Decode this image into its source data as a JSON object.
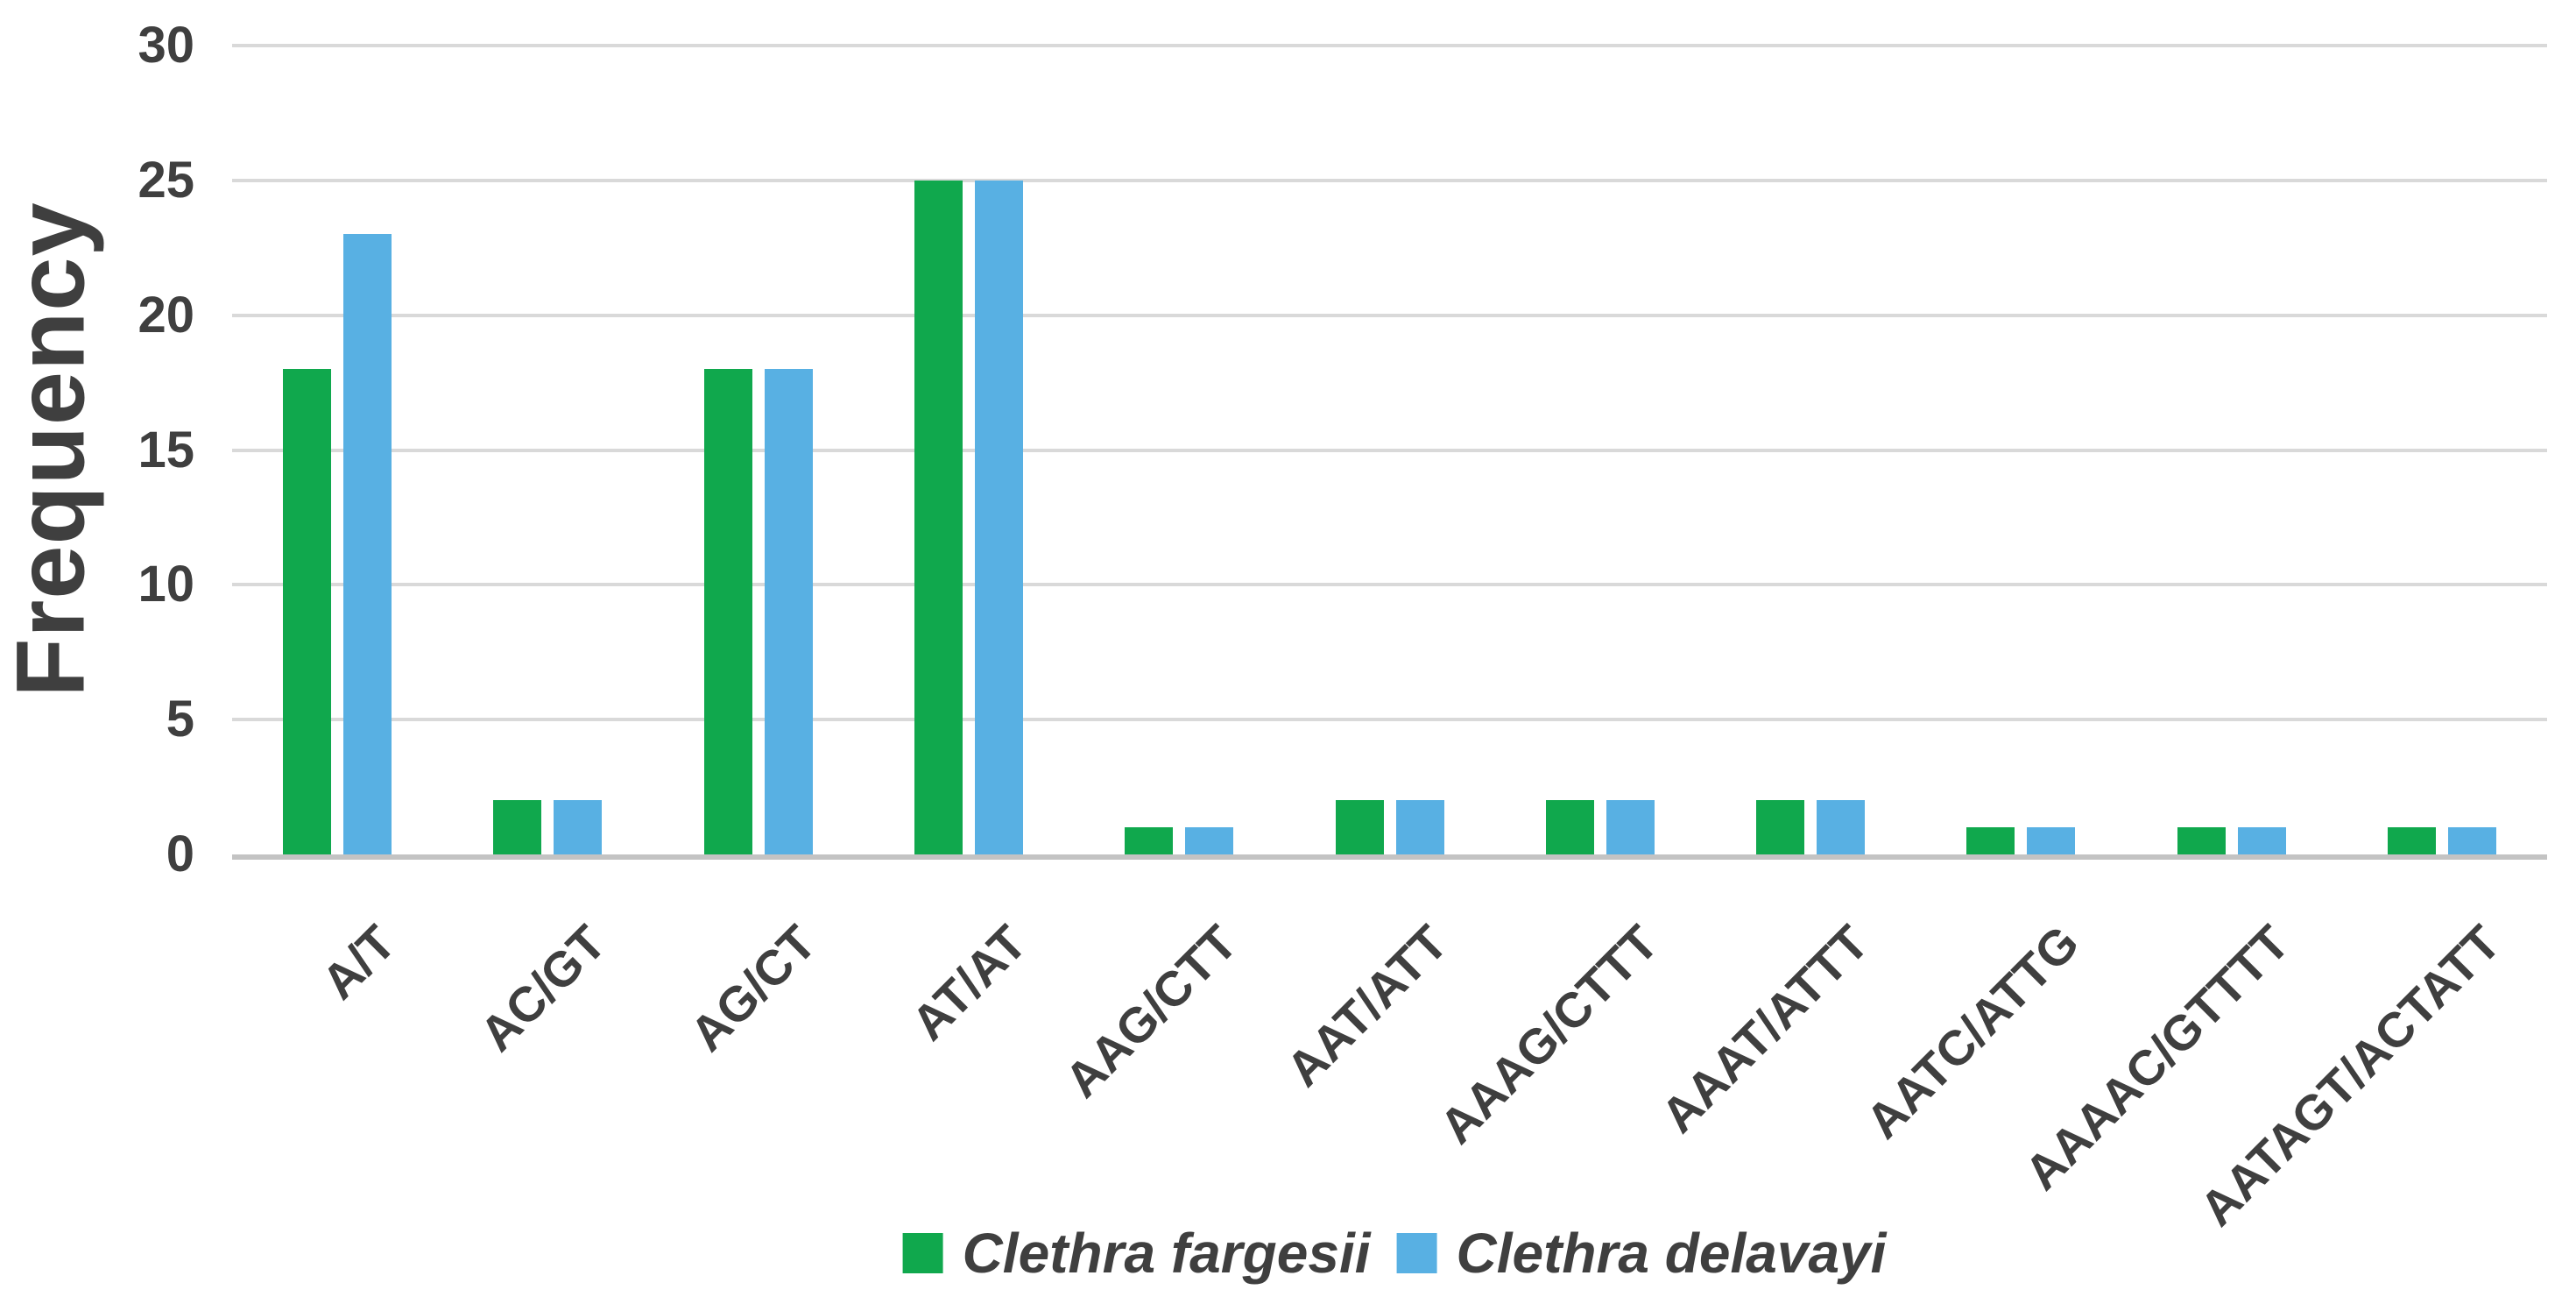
{
  "chart_data": {
    "type": "bar",
    "title": "",
    "xlabel": "",
    "ylabel": "Frequency",
    "categories": [
      "A/T",
      "AC/GT",
      "AG/CT",
      "AT/AT",
      "AAG/CTT",
      "AAT/ATT",
      "AAAG/CTTT",
      "AAAT/ATTT",
      "AATC/ATTG",
      "AAAAC/GTTTT",
      "AATAGT/ACTATT"
    ],
    "series": [
      {
        "name": "Clethra fargesii",
        "color": "#10a84d",
        "values": [
          18,
          2,
          18,
          25,
          1,
          2,
          2,
          2,
          1,
          1,
          1
        ]
      },
      {
        "name": "Clethra delavayi",
        "color": "#58b0e3",
        "values": [
          23,
          2,
          18,
          25,
          1,
          2,
          2,
          2,
          1,
          1,
          1
        ]
      }
    ],
    "ylim": [
      0,
      30
    ],
    "yticks": [
      0,
      5,
      10,
      15,
      20,
      25,
      30
    ],
    "grid": "horizontal-only",
    "legend_position": "bottom-center",
    "colors": {
      "tick_text": "#3f3f3f",
      "gridline": "#d9d9d9",
      "baseline": "#c3c3c3",
      "background": "#ffffff"
    }
  }
}
